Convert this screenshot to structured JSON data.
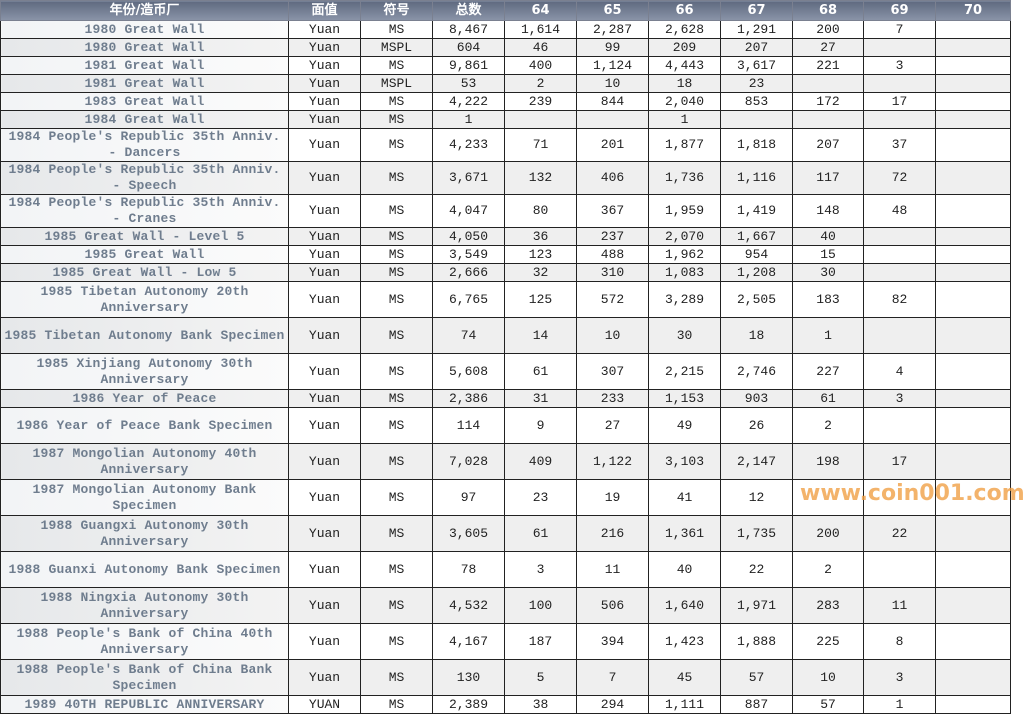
{
  "headers": [
    "年份/造币厂",
    "面值",
    "符号",
    "总数",
    "64",
    "65",
    "66",
    "67",
    "68",
    "69",
    "70"
  ],
  "rows": [
    {
      "name": "1980 Great Wall",
      "denom": "Yuan",
      "sym": "MS",
      "total": "8,467",
      "g": [
        "1,614",
        "2,287",
        "2,628",
        "1,291",
        "200",
        "7",
        ""
      ]
    },
    {
      "name": "1980 Great Wall",
      "denom": "Yuan",
      "sym": "MSPL",
      "total": "604",
      "g": [
        "46",
        "99",
        "209",
        "207",
        "27",
        "",
        ""
      ]
    },
    {
      "name": "1981 Great Wall",
      "denom": "Yuan",
      "sym": "MS",
      "total": "9,861",
      "g": [
        "400",
        "1,124",
        "4,443",
        "3,617",
        "221",
        "3",
        ""
      ]
    },
    {
      "name": "1981 Great Wall",
      "denom": "Yuan",
      "sym": "MSPL",
      "total": "53",
      "g": [
        "2",
        "10",
        "18",
        "23",
        "",
        "",
        ""
      ]
    },
    {
      "name": "1983 Great Wall",
      "denom": "Yuan",
      "sym": "MS",
      "total": "4,222",
      "g": [
        "239",
        "844",
        "2,040",
        "853",
        "172",
        "17",
        ""
      ]
    },
    {
      "name": "1984 Great Wall",
      "denom": "Yuan",
      "sym": "MS",
      "total": "1",
      "g": [
        "",
        "",
        "1",
        "",
        "",
        "",
        ""
      ]
    },
    {
      "name": "1984 People's Republic 35th Anniv. - Dancers",
      "denom": "Yuan",
      "sym": "MS",
      "total": "4,233",
      "g": [
        "71",
        "201",
        "1,877",
        "1,818",
        "207",
        "37",
        ""
      ]
    },
    {
      "name": "1984 People's Republic 35th Anniv. - Speech",
      "denom": "Yuan",
      "sym": "MS",
      "total": "3,671",
      "g": [
        "132",
        "406",
        "1,736",
        "1,116",
        "117",
        "72",
        ""
      ]
    },
    {
      "name": "1984 People's Republic 35th Anniv. - Cranes",
      "denom": "Yuan",
      "sym": "MS",
      "total": "4,047",
      "g": [
        "80",
        "367",
        "1,959",
        "1,419",
        "148",
        "48",
        ""
      ]
    },
    {
      "name": "1985 Great Wall - Level 5",
      "denom": "Yuan",
      "sym": "MS",
      "total": "4,050",
      "g": [
        "36",
        "237",
        "2,070",
        "1,667",
        "40",
        "",
        ""
      ]
    },
    {
      "name": "1985 Great Wall",
      "denom": "Yuan",
      "sym": "MS",
      "total": "3,549",
      "g": [
        "123",
        "488",
        "1,962",
        "954",
        "15",
        "",
        ""
      ]
    },
    {
      "name": "1985 Great Wall - Low 5",
      "denom": "Yuan",
      "sym": "MS",
      "total": "2,666",
      "g": [
        "32",
        "310",
        "1,083",
        "1,208",
        "30",
        "",
        ""
      ]
    },
    {
      "name": "1985 Tibetan Autonomy 20th Anniversary",
      "denom": "Yuan",
      "sym": "MS",
      "total": "6,765",
      "g": [
        "125",
        "572",
        "3,289",
        "2,505",
        "183",
        "82",
        ""
      ]
    },
    {
      "name": "1985 Tibetan Autonomy Bank Specimen",
      "denom": "Yuan",
      "sym": "MS",
      "total": "74",
      "g": [
        "14",
        "10",
        "30",
        "18",
        "1",
        "",
        ""
      ]
    },
    {
      "name": "1985 Xinjiang Autonomy 30th Anniversary",
      "denom": "Yuan",
      "sym": "MS",
      "total": "5,608",
      "g": [
        "61",
        "307",
        "2,215",
        "2,746",
        "227",
        "4",
        ""
      ]
    },
    {
      "name": "1986 Year of Peace",
      "denom": "Yuan",
      "sym": "MS",
      "total": "2,386",
      "g": [
        "31",
        "233",
        "1,153",
        "903",
        "61",
        "3",
        ""
      ]
    },
    {
      "name": "1986 Year of Peace Bank Specimen",
      "denom": "Yuan",
      "sym": "MS",
      "total": "114",
      "g": [
        "9",
        "27",
        "49",
        "26",
        "2",
        "",
        ""
      ]
    },
    {
      "name": "1987 Mongolian Autonomy 40th Anniversary",
      "denom": "Yuan",
      "sym": "MS",
      "total": "7,028",
      "g": [
        "409",
        "1,122",
        "3,103",
        "2,147",
        "198",
        "17",
        ""
      ]
    },
    {
      "name": "1987 Mongolian Autonomy Bank Specimen",
      "denom": "Yuan",
      "sym": "MS",
      "total": "97",
      "g": [
        "23",
        "19",
        "41",
        "12",
        "",
        "",
        ""
      ]
    },
    {
      "name": "1988 Guangxi Autonomy 30th Anniversary",
      "denom": "Yuan",
      "sym": "MS",
      "total": "3,605",
      "g": [
        "61",
        "216",
        "1,361",
        "1,735",
        "200",
        "22",
        ""
      ]
    },
    {
      "name": "1988 Guanxi Autonomy Bank Specimen",
      "denom": "Yuan",
      "sym": "MS",
      "total": "78",
      "g": [
        "3",
        "11",
        "40",
        "22",
        "2",
        "",
        ""
      ]
    },
    {
      "name": "1988 Ningxia Autonomy 30th Anniversary",
      "denom": "Yuan",
      "sym": "MS",
      "total": "4,532",
      "g": [
        "100",
        "506",
        "1,640",
        "1,971",
        "283",
        "11",
        ""
      ]
    },
    {
      "name": "1988 People's Bank of China 40th Anniversary",
      "denom": "Yuan",
      "sym": "MS",
      "total": "4,167",
      "g": [
        "187",
        "394",
        "1,423",
        "1,888",
        "225",
        "8",
        ""
      ]
    },
    {
      "name": "1988 People's Bank of China Bank Specimen",
      "denom": "Yuan",
      "sym": "MS",
      "total": "130",
      "g": [
        "5",
        "7",
        "45",
        "57",
        "10",
        "3",
        ""
      ]
    },
    {
      "name": "1989 40TH REPUBLIC ANNIVERSARY",
      "denom": "YUAN",
      "sym": "MS",
      "total": "2,389",
      "g": [
        "38",
        "294",
        "1,111",
        "887",
        "57",
        "1",
        ""
      ]
    }
  ],
  "watermark": "www.coin001.com",
  "colors": {
    "header_bg": "#6d7890",
    "name_text": "#6f7d8e",
    "alt_row": "#efefef",
    "watermark": "#f0a046"
  }
}
